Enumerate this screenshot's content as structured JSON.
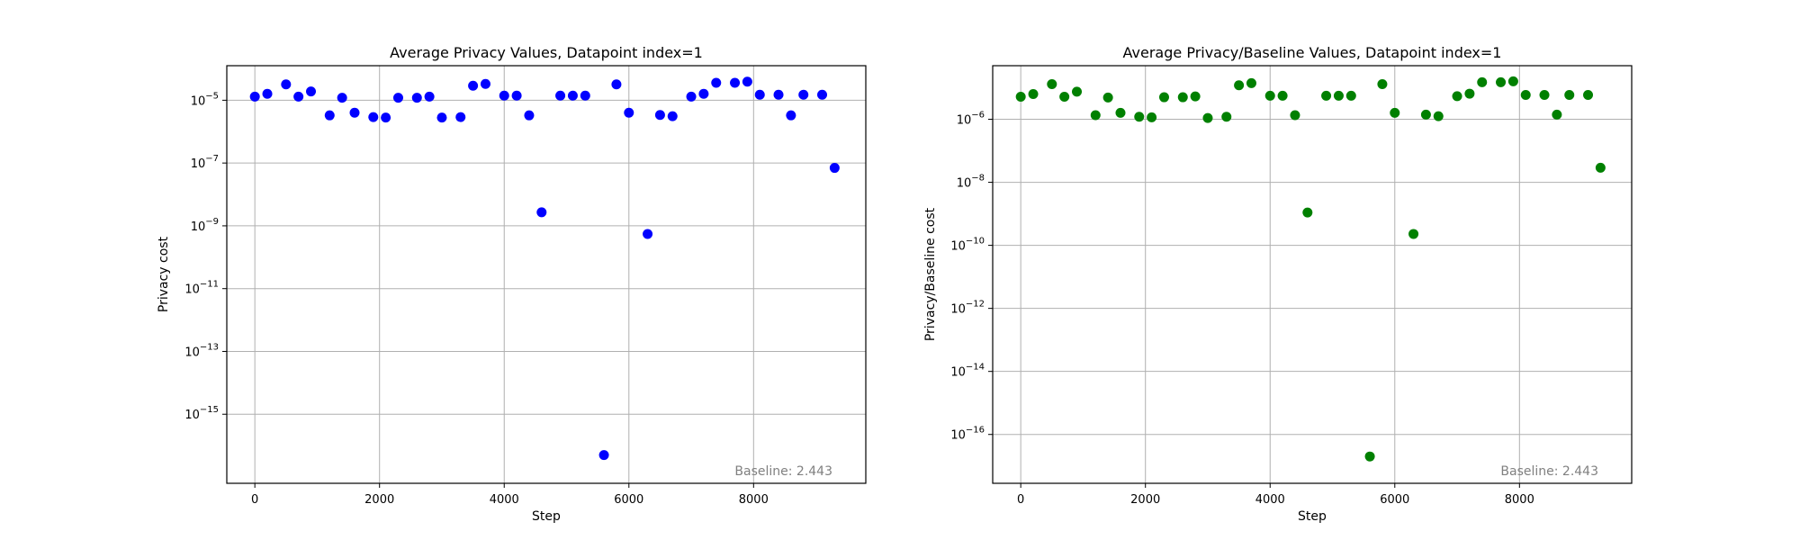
{
  "chart_data": [
    {
      "type": "scatter",
      "title": "Average Privacy Values, Datapoint index=1",
      "xlabel": "Step",
      "ylabel": "Privacy cost",
      "yscale": "log",
      "xlim": [
        -450,
        9800
      ],
      "ylim_exp": [
        -17.2,
        -3.9
      ],
      "xticks": [
        0,
        2000,
        4000,
        6000,
        8000
      ],
      "ytick_exponents": [
        -15,
        -13,
        -11,
        -9,
        -7,
        -5
      ],
      "grid": true,
      "color": "#0000ff",
      "annotation": "Baseline: 2.443",
      "x": [
        0,
        200,
        500,
        700,
        900,
        1200,
        1400,
        1600,
        1900,
        2100,
        2300,
        2600,
        2800,
        3000,
        3300,
        3500,
        3700,
        4000,
        4200,
        4400,
        4600,
        4900,
        5100,
        5300,
        5600,
        5800,
        6000,
        6300,
        6500,
        6700,
        7000,
        7200,
        7400,
        7700,
        7900,
        8100,
        8400,
        8600,
        8800,
        9100,
        9300
      ],
      "y": [
        1.3e-05,
        1.6e-05,
        3.2e-05,
        1.3e-05,
        1.9e-05,
        3.3e-06,
        1.2e-05,
        4e-06,
        2.9e-06,
        2.8e-06,
        1.2e-05,
        1.2e-05,
        1.3e-05,
        2.8e-06,
        2.9e-06,
        2.9e-05,
        3.3e-05,
        1.4e-05,
        1.4e-05,
        3.3e-06,
        2.7e-09,
        1.4e-05,
        1.4e-05,
        1.4e-05,
        5e-17,
        3.2e-05,
        4e-06,
        5.5e-10,
        3.4e-06,
        3.1e-06,
        1.3e-05,
        1.6e-05,
        3.6e-05,
        3.6e-05,
        3.9e-05,
        1.5e-05,
        1.5e-05,
        3.3e-06,
        1.5e-05,
        1.5e-05,
        7e-08
      ]
    },
    {
      "type": "scatter",
      "title": "Average Privacy/Baseline Values, Datapoint index=1",
      "xlabel": "Step",
      "ylabel": "Privacy/Baseline cost",
      "yscale": "log",
      "xlim": [
        -450,
        9800
      ],
      "ylim_exp": [
        -17.55,
        -4.3
      ],
      "xticks": [
        0,
        2000,
        4000,
        6000,
        8000
      ],
      "ytick_exponents": [
        -16,
        -14,
        -12,
        -10,
        -8,
        -6
      ],
      "grid": true,
      "color": "#008000",
      "annotation": "Baseline: 2.443",
      "x": [
        0,
        200,
        500,
        700,
        900,
        1200,
        1400,
        1600,
        1900,
        2100,
        2300,
        2600,
        2800,
        3000,
        3300,
        3500,
        3700,
        4000,
        4200,
        4400,
        4600,
        4900,
        5100,
        5300,
        5600,
        5800,
        6000,
        6300,
        6500,
        6700,
        7000,
        7200,
        7400,
        7700,
        7900,
        8100,
        8400,
        8600,
        8800,
        9100,
        9300
      ],
      "y": [
        5.2e-06,
        6.3e-06,
        1.3e-05,
        5.2e-06,
        7.5e-06,
        1.35e-06,
        4.9e-06,
        1.6e-06,
        1.2e-06,
        1.15e-06,
        5e-06,
        5e-06,
        5.3e-06,
        1.1e-06,
        1.2e-06,
        1.2e-05,
        1.4e-05,
        5.6e-06,
        5.6e-06,
        1.35e-06,
        1.1e-09,
        5.6e-06,
        5.6e-06,
        5.6e-06,
        2e-17,
        1.3e-05,
        1.6e-06,
        2.3e-10,
        1.4e-06,
        1.25e-06,
        5.4e-06,
        6.5e-06,
        1.5e-05,
        1.5e-05,
        1.6e-05,
        5.9e-06,
        5.9e-06,
        1.4e-06,
        5.9e-06,
        5.9e-06,
        2.9e-08
      ]
    }
  ]
}
